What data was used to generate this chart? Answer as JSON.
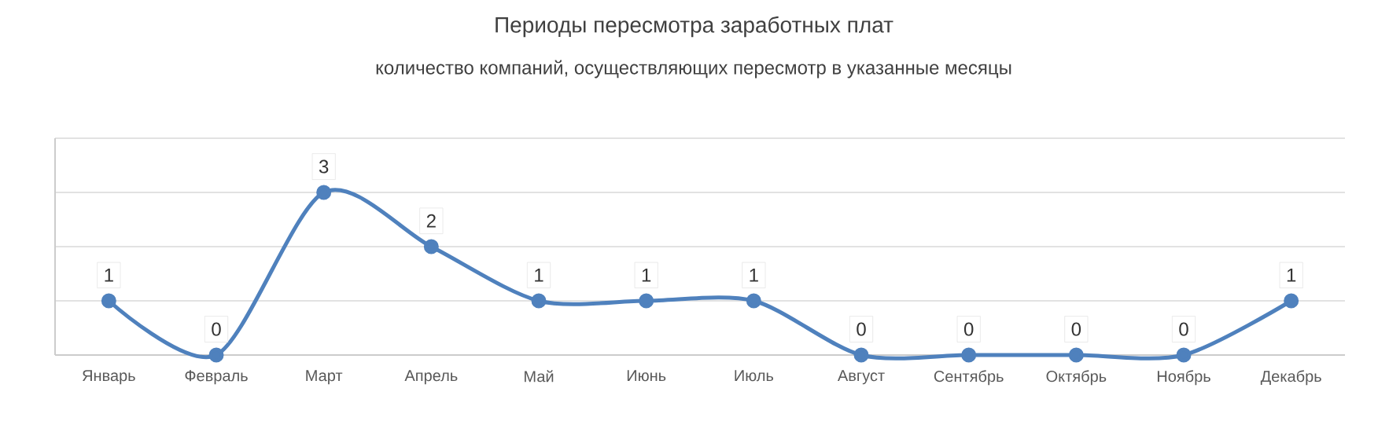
{
  "chart_data": {
    "type": "line",
    "title": "Периоды пересмотра заработных плат",
    "subtitle": "количество компаний, осуществляющих пересмотр в указанные месяцы",
    "categories": [
      "Январь",
      "Февраль",
      "Март",
      "Апрель",
      "Май",
      "Июнь",
      "Июль",
      "Август",
      "Сентябрь",
      "Октябрь",
      "Ноябрь",
      "Декабрь"
    ],
    "series": [
      {
        "color": "#4f81bd",
        "values": [
          1,
          0,
          3,
          2,
          1,
          1,
          1,
          0,
          0,
          0,
          0,
          1
        ]
      }
    ],
    "ylim": [
      0,
      4
    ],
    "yticks": [
      {
        "value": 0,
        "label": null
      },
      {
        "value": 1,
        "label": null
      },
      {
        "value": 2,
        "label": null
      },
      {
        "value": 3,
        "label": null
      },
      {
        "value": 4,
        "label": null
      }
    ],
    "grid": "y",
    "tick_labels": "x",
    "marker": "circle",
    "line_style": "solid",
    "data_labels": true
  }
}
